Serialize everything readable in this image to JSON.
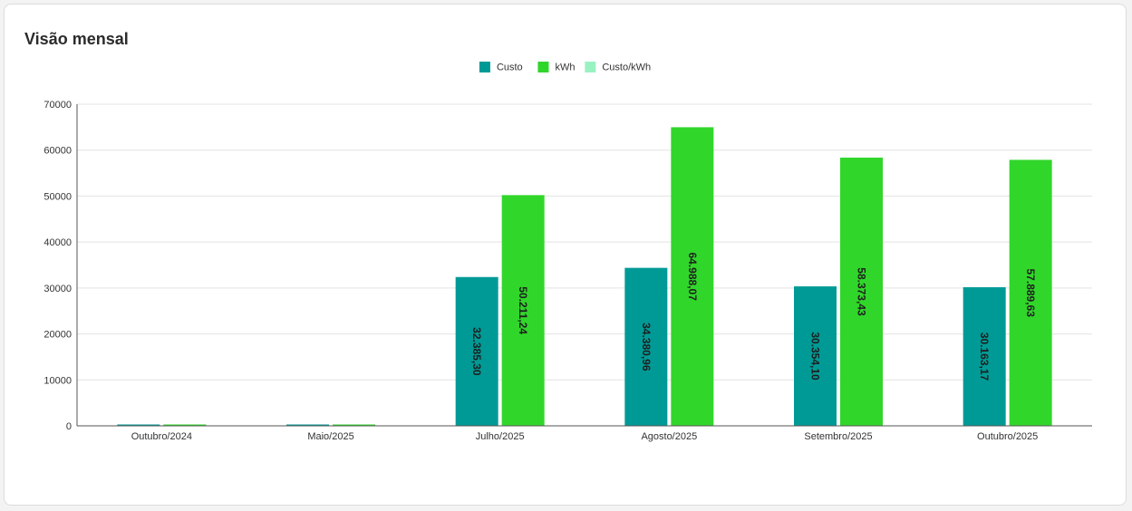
{
  "panel": {
    "title": "Visão mensal"
  },
  "chart_data": {
    "type": "bar",
    "categories": [
      "Outubro/2024",
      "Maio/2025",
      "Julho/2025",
      "Agosto/2025",
      "Setembro/2025",
      "Outubro/2025"
    ],
    "series": [
      {
        "name": "Custo",
        "color": "#009a96",
        "values": [
          120,
          110,
          32385.3,
          34380.96,
          30354.1,
          30163.17
        ],
        "labels": [
          "",
          "",
          "32.385,30",
          "34.380,96",
          "30.354,10",
          "30.163,17"
        ]
      },
      {
        "name": "kWh",
        "color": "#31d62b",
        "values": [
          300,
          150,
          50211.24,
          64988.07,
          58373.43,
          57889.63
        ],
        "labels": [
          "",
          "",
          "50.211,24",
          "64.988,07",
          "58.373,43",
          "57.889,63"
        ]
      },
      {
        "name": "Custo/kWh",
        "color": "#9af2c3",
        "values": [
          0.4,
          0.7,
          0.64,
          0.53,
          0.52,
          0.52
        ],
        "labels": [
          "",
          "",
          "",
          "",
          "",
          ""
        ]
      }
    ],
    "ylim": [
      0,
      70000
    ],
    "yticks": [
      0,
      10000,
      20000,
      30000,
      40000,
      50000,
      60000,
      70000
    ],
    "grid": true,
    "legend": "top-center"
  }
}
